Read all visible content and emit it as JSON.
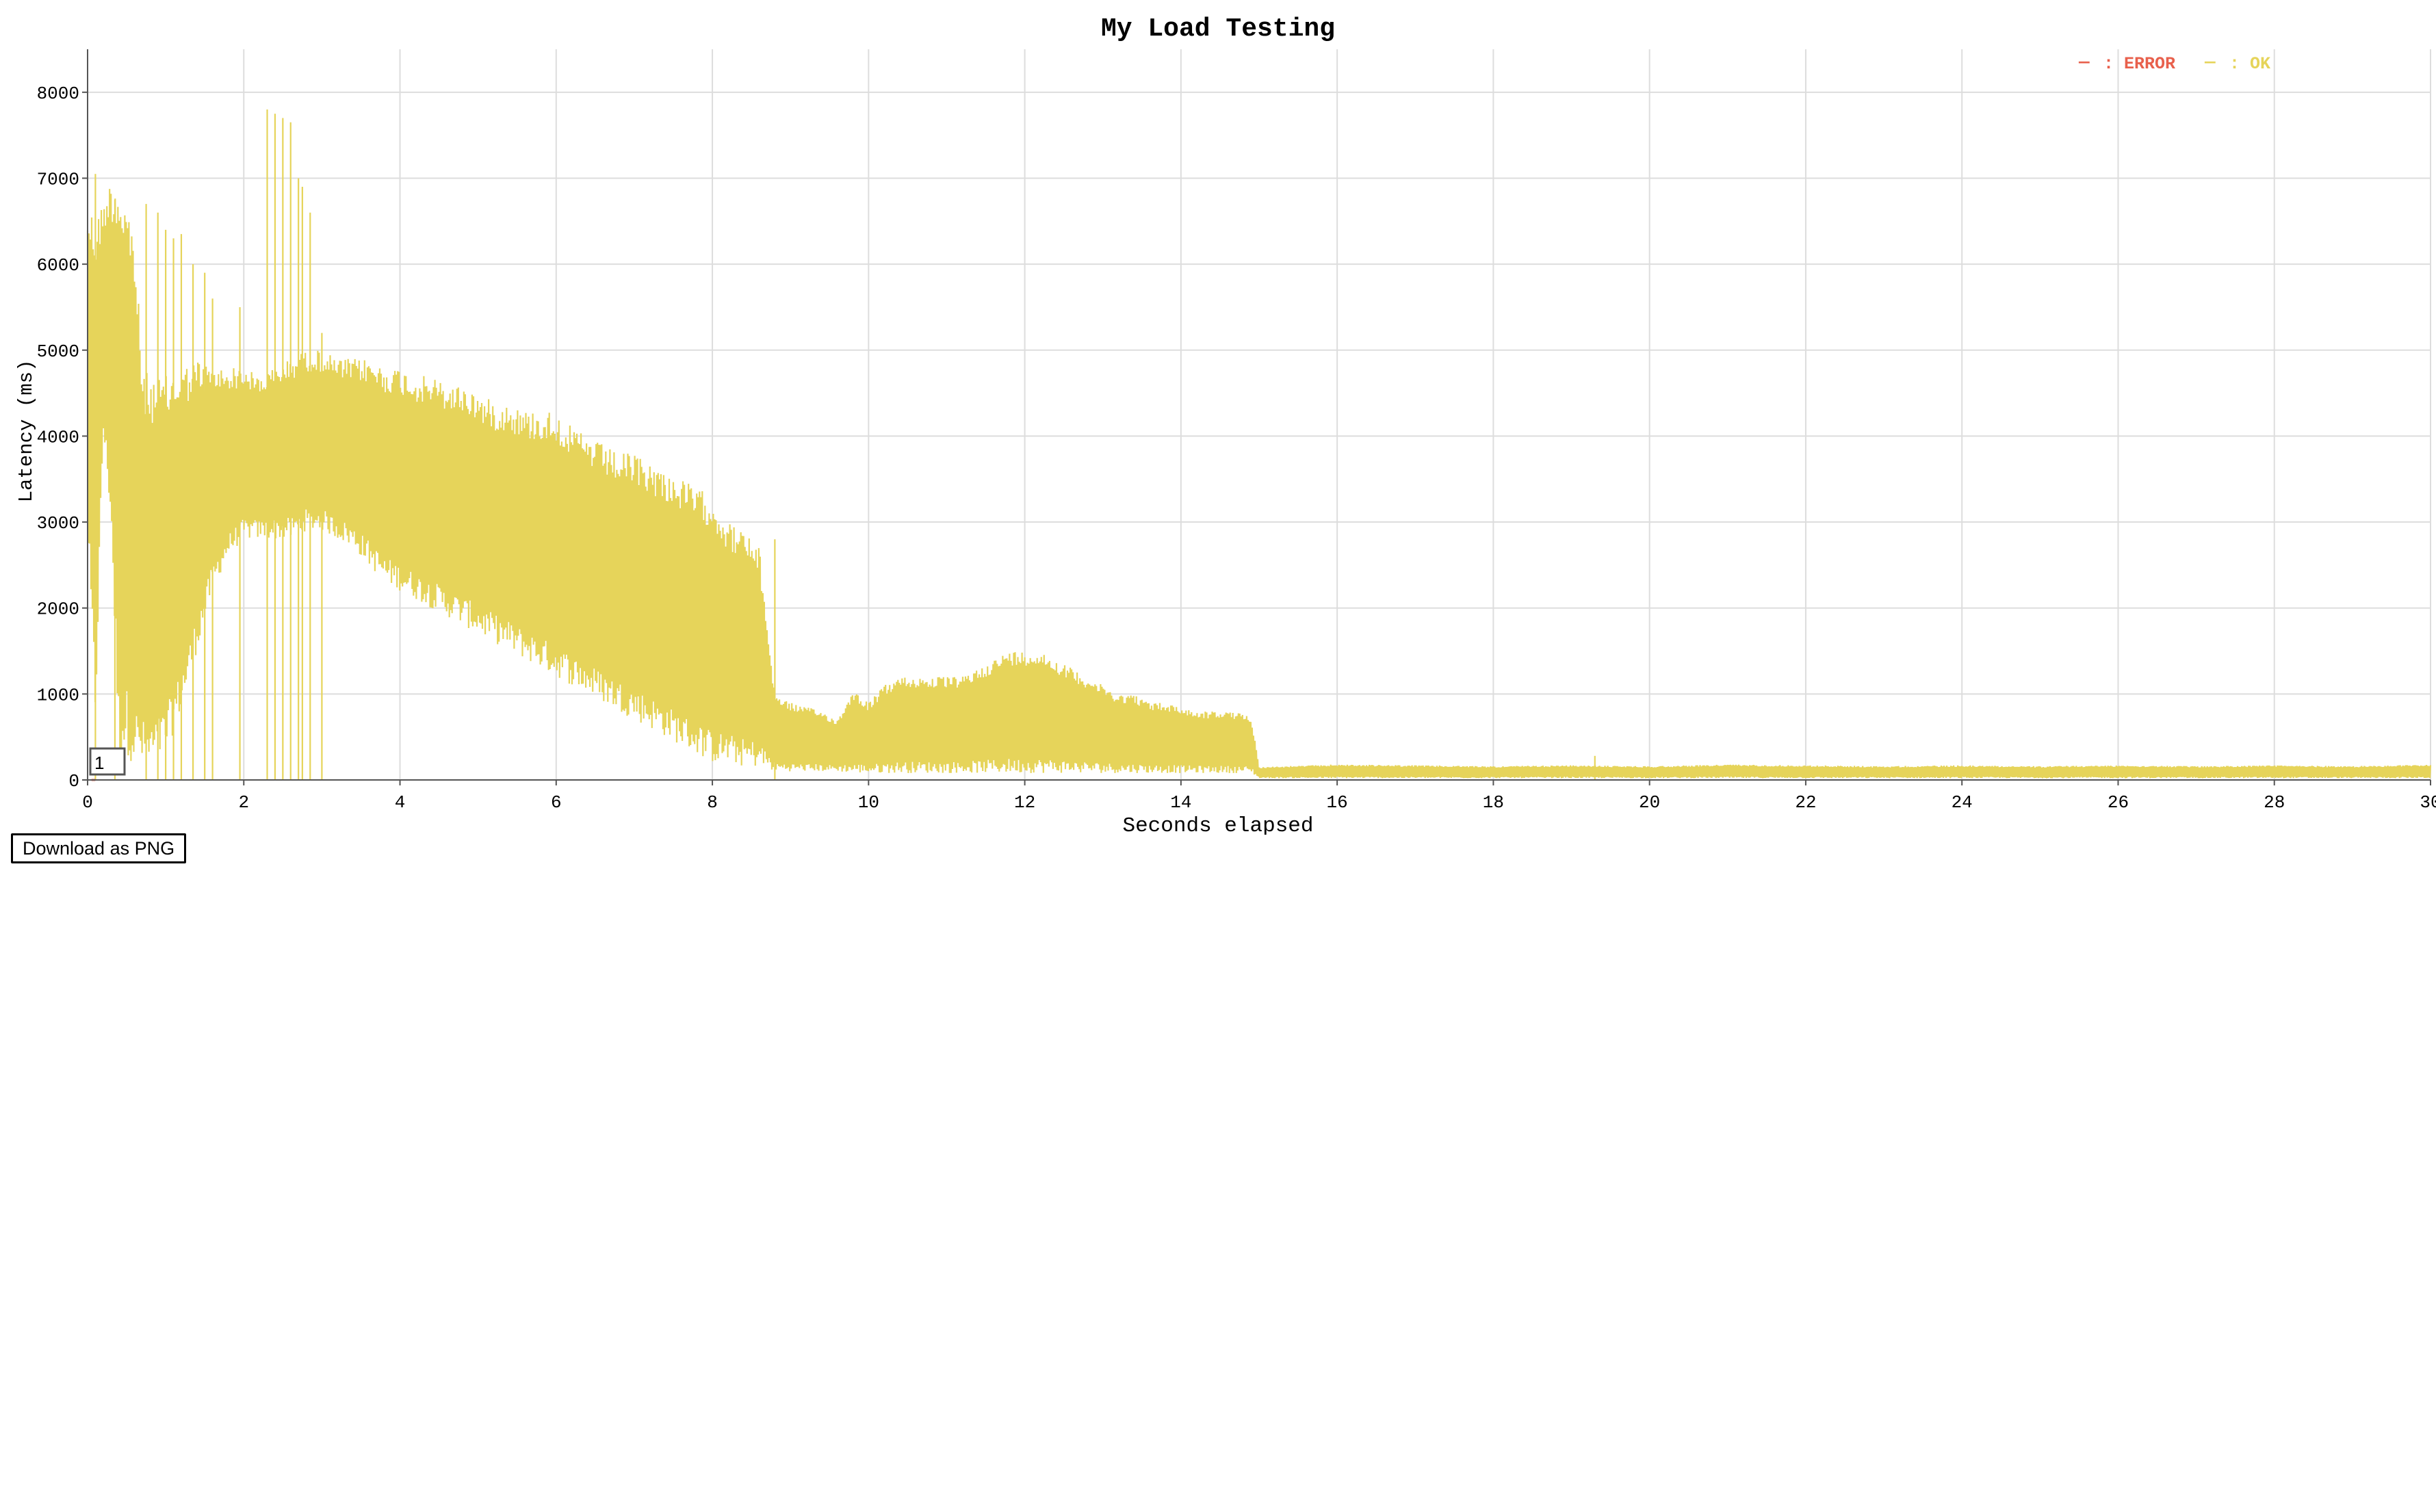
{
  "download_label": "Download as PNG",
  "chart_data": {
    "type": "line",
    "title": "My Load Testing",
    "xlabel": "Seconds elapsed",
    "ylabel": "Latency (ms)",
    "xlim": [
      0,
      30
    ],
    "ylim": [
      0,
      8500
    ],
    "xticks": [
      0,
      2,
      4,
      6,
      8,
      10,
      12,
      14,
      16,
      18,
      20,
      22,
      24,
      26,
      28,
      30
    ],
    "yticks": [
      0,
      1000,
      2000,
      3000,
      4000,
      5000,
      6000,
      7000,
      8000
    ],
    "grid": true,
    "legend": {
      "position": "top-right",
      "entries": [
        {
          "symbol": "—",
          "label": ": ERROR",
          "color": "#e8604c"
        },
        {
          "symbol": "—",
          "label": ": OK",
          "color": "#e6d45a"
        }
      ]
    },
    "marker_label": "1",
    "series": [
      {
        "name": "ERROR",
        "color": "#e8604c",
        "points": [
          [
            0.05,
            0
          ],
          [
            0.1,
            0
          ]
        ]
      },
      {
        "name": "OK",
        "color": "#e6d45a",
        "bands": [
          [
            0.0,
            2800,
            6700
          ],
          [
            0.1,
            600,
            6600
          ],
          [
            0.2,
            4000,
            6700
          ],
          [
            0.3,
            3000,
            7000
          ],
          [
            0.4,
            200,
            7100
          ],
          [
            0.5,
            300,
            6800
          ],
          [
            0.6,
            150,
            6400
          ],
          [
            0.7,
            150,
            4800
          ],
          [
            0.8,
            100,
            4700
          ],
          [
            1.0,
            300,
            4700
          ],
          [
            1.2,
            800,
            4800
          ],
          [
            1.4,
            1500,
            4900
          ],
          [
            1.6,
            2200,
            4800
          ],
          [
            1.8,
            2600,
            4800
          ],
          [
            2.0,
            2800,
            4800
          ],
          [
            2.2,
            2800,
            4700
          ],
          [
            2.4,
            2800,
            4800
          ],
          [
            2.6,
            2800,
            4900
          ],
          [
            2.8,
            2900,
            5000
          ],
          [
            3.0,
            2900,
            5000
          ],
          [
            3.2,
            2800,
            4900
          ],
          [
            3.4,
            2700,
            4900
          ],
          [
            3.6,
            2500,
            4900
          ],
          [
            3.8,
            2300,
            4800
          ],
          [
            4.0,
            2200,
            4800
          ],
          [
            4.2,
            2100,
            4700
          ],
          [
            4.4,
            2000,
            4700
          ],
          [
            4.6,
            1900,
            4600
          ],
          [
            4.8,
            1800,
            4600
          ],
          [
            5.0,
            1700,
            4500
          ],
          [
            5.2,
            1600,
            4400
          ],
          [
            5.4,
            1500,
            4400
          ],
          [
            5.6,
            1400,
            4300
          ],
          [
            5.8,
            1300,
            4300
          ],
          [
            6.0,
            1200,
            4300
          ],
          [
            6.2,
            1100,
            4100
          ],
          [
            6.4,
            1000,
            4000
          ],
          [
            6.6,
            900,
            3900
          ],
          [
            6.8,
            800,
            3800
          ],
          [
            7.0,
            700,
            3800
          ],
          [
            7.2,
            600,
            3700
          ],
          [
            7.4,
            500,
            3600
          ],
          [
            7.6,
            400,
            3500
          ],
          [
            7.8,
            300,
            3400
          ],
          [
            8.0,
            200,
            3300
          ],
          [
            8.2,
            200,
            3000
          ],
          [
            8.4,
            150,
            2900
          ],
          [
            8.6,
            150,
            2700
          ],
          [
            8.8,
            100,
            1000
          ],
          [
            9.0,
            100,
            900
          ],
          [
            9.2,
            100,
            850
          ],
          [
            9.4,
            100,
            800
          ],
          [
            9.6,
            100,
            700
          ],
          [
            9.8,
            80,
            1050
          ],
          [
            10.0,
            80,
            900
          ],
          [
            10.2,
            80,
            1100
          ],
          [
            10.4,
            80,
            1200
          ],
          [
            10.6,
            80,
            1200
          ],
          [
            10.8,
            80,
            1200
          ],
          [
            11.0,
            80,
            1200
          ],
          [
            11.2,
            80,
            1200
          ],
          [
            11.4,
            80,
            1300
          ],
          [
            11.6,
            80,
            1400
          ],
          [
            11.8,
            80,
            1500
          ],
          [
            12.0,
            80,
            1500
          ],
          [
            12.2,
            80,
            1500
          ],
          [
            12.4,
            80,
            1400
          ],
          [
            12.6,
            80,
            1300
          ],
          [
            12.8,
            80,
            1200
          ],
          [
            13.0,
            80,
            1100
          ],
          [
            13.2,
            80,
            1000
          ],
          [
            13.4,
            80,
            1000
          ],
          [
            13.6,
            80,
            900
          ],
          [
            13.8,
            80,
            900
          ],
          [
            14.0,
            80,
            850
          ],
          [
            14.2,
            80,
            800
          ],
          [
            14.4,
            80,
            800
          ],
          [
            14.6,
            80,
            800
          ],
          [
            14.9,
            80,
            750
          ],
          [
            15.0,
            20,
            150
          ],
          [
            16.0,
            20,
            180
          ],
          [
            17.0,
            20,
            170
          ],
          [
            18.0,
            20,
            160
          ],
          [
            19.0,
            20,
            170
          ],
          [
            20.0,
            20,
            160
          ],
          [
            21.0,
            20,
            180
          ],
          [
            22.0,
            20,
            170
          ],
          [
            23.0,
            20,
            160
          ],
          [
            24.0,
            20,
            170
          ],
          [
            25.0,
            20,
            160
          ],
          [
            26.0,
            20,
            170
          ],
          [
            27.0,
            20,
            160
          ],
          [
            28.0,
            20,
            170
          ],
          [
            29.0,
            20,
            160
          ],
          [
            30.0,
            20,
            180
          ]
        ],
        "spikes": [
          [
            0.1,
            7050
          ],
          [
            0.35,
            6750
          ],
          [
            0.75,
            6700
          ],
          [
            0.9,
            6600
          ],
          [
            1.0,
            6400
          ],
          [
            1.1,
            6300
          ],
          [
            1.2,
            6350
          ],
          [
            1.35,
            6000
          ],
          [
            1.5,
            5900
          ],
          [
            1.6,
            5600
          ],
          [
            1.95,
            5500
          ],
          [
            2.3,
            7800
          ],
          [
            2.4,
            7750
          ],
          [
            2.5,
            7700
          ],
          [
            2.6,
            7650
          ],
          [
            2.7,
            7000
          ],
          [
            2.75,
            6900
          ],
          [
            2.85,
            6600
          ],
          [
            3.0,
            5200
          ],
          [
            8.8,
            2800
          ],
          [
            19.3,
            280
          ]
        ]
      }
    ]
  }
}
